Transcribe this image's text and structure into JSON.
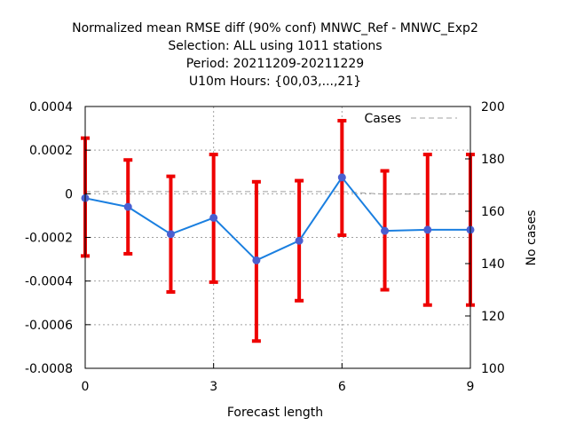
{
  "chart_data": {
    "type": "line",
    "title_lines": [
      "Normalized mean RMSE diff (90% conf) MNWC_Ref - MNWC_Exp2",
      "Selection: ALL using  1011 stations",
      "Period: 20211209-20211229",
      "U10m   Hours: {00,03,...,21}"
    ],
    "xlabel": "Forecast length",
    "ylabel": "",
    "y2label": "No cases",
    "xlim": [
      0,
      9
    ],
    "ylim": [
      -0.0008,
      0.0004
    ],
    "y2lim": [
      100,
      200
    ],
    "x_ticks": [
      0,
      3,
      6,
      9
    ],
    "x_tick_labels": [
      "0",
      "3",
      "6",
      "9"
    ],
    "y_ticks": [
      -0.0008,
      -0.0006,
      -0.0004,
      -0.0002,
      0,
      0.0002,
      0.0004
    ],
    "y_tick_labels": [
      "-0.0008",
      "-0.0006",
      "-0.0004",
      "-0.0002",
      "0",
      "0.0002",
      "0.0004"
    ],
    "y2_ticks": [
      100,
      120,
      140,
      160,
      180,
      200
    ],
    "y2_tick_labels": [
      "100",
      "120",
      "140",
      "160",
      "180",
      "200"
    ],
    "grid": true,
    "legend_position": "top-right",
    "series": [
      {
        "axis": "y",
        "color": "#1a7fe0",
        "marker_color": "#4a5fd0",
        "errorbar_color": "#ee0000",
        "x": [
          0,
          1,
          2,
          3,
          4,
          5,
          6,
          7,
          8,
          9
        ],
        "values": [
          -2e-05,
          -6e-05,
          -0.000185,
          -0.00011,
          -0.000305,
          -0.000215,
          7.5e-05,
          -0.00017,
          -0.000165,
          -0.000165
        ],
        "lower": [
          -0.000285,
          -0.000275,
          -0.00045,
          -0.000405,
          -0.000675,
          -0.00049,
          -0.00019,
          -0.00044,
          -0.00051,
          -0.00051
        ],
        "upper": [
          0.000255,
          0.000155,
          8e-05,
          0.00018,
          5.5e-05,
          6e-05,
          0.000335,
          0.000105,
          0.00018,
          0.00018
        ]
      },
      {
        "name": "Cases",
        "axis": "y2",
        "color": "#a0a0a0",
        "x": [
          0,
          1,
          2,
          3,
          4,
          5,
          6,
          7,
          8,
          9
        ],
        "values": [
          167.5,
          167.5,
          167.5,
          167.5,
          167.5,
          167.5,
          167.5,
          166.5,
          166.5,
          166.5
        ]
      }
    ]
  }
}
